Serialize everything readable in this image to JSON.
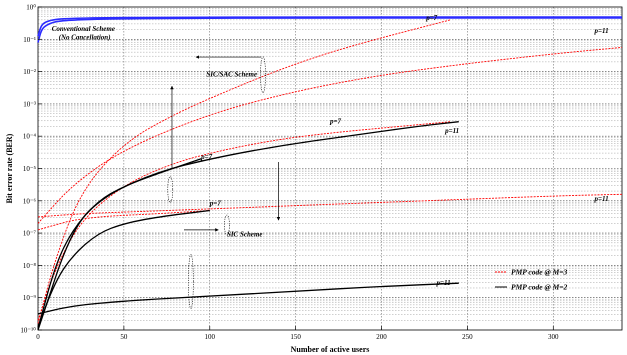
{
  "chart_data": {
    "type": "line",
    "xlabel": "Number of active users",
    "ylabel": "Bit error rate (BER)",
    "xlim": [
      0,
      340
    ],
    "ylim_exponent": [
      -10,
      0
    ],
    "y_scale": "log",
    "grid": true,
    "x_ticks": [
      "0",
      "50",
      "100",
      "150",
      "200",
      "250",
      "300"
    ],
    "x_tick_values": [
      0,
      50,
      100,
      150,
      200,
      250,
      300
    ],
    "y_ticks": [
      "10⁻¹⁰",
      "10⁻⁹",
      "10⁻⁸",
      "10⁻⁷",
      "10⁻⁶",
      "10⁻⁵",
      "10⁻⁴",
      "10⁻³",
      "10⁻²",
      "10⁻¹",
      "10⁰"
    ],
    "y_tick_exponents": [
      -10,
      -9,
      -8,
      -7,
      -6,
      -5,
      -4,
      -3,
      -2,
      -1,
      0
    ],
    "annotations": [
      {
        "text": "Conventional Scheme",
        "x": 8,
        "y": -0.75
      },
      {
        "text": "(No Cancellation)",
        "x": 12,
        "y": -1.0
      },
      {
        "text": "SIC/SAC Scheme",
        "x": 98,
        "y": -2.15
      },
      {
        "text": "SIC Scheme",
        "x": 110,
        "y": -7.1
      },
      {
        "text": "p=7",
        "x": 226,
        "y": -0.4
      },
      {
        "text": "p=11",
        "x": 324,
        "y": -0.8
      },
      {
        "text": "p=7",
        "x": 170,
        "y": -3.6
      },
      {
        "text": "p=11",
        "x": 237,
        "y": -3.9
      },
      {
        "text": "p=7",
        "x": 95,
        "y": -4.7
      },
      {
        "text": "p=11",
        "x": 324,
        "y": -6.0
      },
      {
        "text": "p=7",
        "x": 100,
        "y": -6.15
      },
      {
        "text": "p=11",
        "x": 232,
        "y": -8.6
      }
    ],
    "legend": {
      "position": "bottom-right",
      "entries": [
        {
          "label": "PMP code @ M=3",
          "color": "#ff0000"
        },
        {
          "label": "PMP code @ M=2",
          "color": "#000000"
        }
      ]
    },
    "series": [
      {
        "color": "#2b2bff",
        "x": [
          0,
          2,
          5,
          10,
          20,
          40,
          80,
          150,
          250,
          340
        ],
        "y": [
          -0.9,
          -0.55,
          -0.45,
          -0.38,
          -0.35,
          -0.33,
          -0.32,
          -0.31,
          -0.31,
          -0.31
        ]
      },
      {
        "color": "#2b2bff",
        "x": [
          0,
          2,
          5,
          10,
          20,
          40,
          80,
          150,
          250,
          340
        ],
        "y": [
          -1.1,
          -0.7,
          -0.55,
          -0.45,
          -0.4,
          -0.37,
          -0.35,
          -0.34,
          -0.34,
          -0.34
        ]
      },
      {
        "color": "#ff0000",
        "x": [
          0,
          10,
          25,
          50,
          80,
          110,
          140,
          170,
          200,
          240
        ],
        "y": [
          -9.8,
          -7.8,
          -5.7,
          -4.2,
          -3.3,
          -2.6,
          -1.95,
          -1.4,
          -0.95,
          -0.4
        ]
      },
      {
        "color": "#ff0000",
        "x": [
          0,
          20,
          50,
          100,
          150,
          200,
          250,
          300,
          340
        ],
        "y": [
          -6.7,
          -5.5,
          -4.4,
          -3.3,
          -2.6,
          -2.1,
          -1.75,
          -1.45,
          -1.25
        ]
      },
      {
        "color": "#ff0000",
        "x": [
          0,
          10,
          25,
          50,
          80,
          110,
          140,
          170,
          200,
          240
        ],
        "y": [
          -9.7,
          -8.1,
          -6.6,
          -5.5,
          -4.8,
          -4.4,
          -4.1,
          -3.9,
          -3.75,
          -3.55
        ]
      },
      {
        "color": "#ff0000",
        "x": [
          0,
          25,
          50,
          100,
          150,
          200,
          250,
          300,
          340
        ],
        "y": [
          -6.5,
          -6.4,
          -6.35,
          -6.25,
          -6.15,
          -6.05,
          -5.95,
          -5.85,
          -5.8
        ]
      },
      {
        "color": "#ff0000",
        "x": [
          0,
          10,
          20,
          35,
          50,
          70,
          100
        ],
        "y": [
          -6.9,
          -6.75,
          -6.6,
          -6.5,
          -6.45,
          -6.4,
          -6.3
        ]
      },
      {
        "color": "#000000",
        "x": [
          0,
          10,
          20,
          35,
          50,
          70,
          100
        ],
        "y": [
          -9.9,
          -8.5,
          -7.7,
          -7.0,
          -6.7,
          -6.5,
          -6.3
        ]
      },
      {
        "color": "#000000",
        "x": [
          0,
          10,
          20,
          35,
          50,
          70,
          95
        ],
        "y": [
          -9.95,
          -8.0,
          -6.9,
          -6.0,
          -5.55,
          -5.15,
          -4.7
        ]
      },
      {
        "color": "#000000",
        "x": [
          0,
          20,
          40,
          70,
          100,
          140,
          180,
          220,
          245
        ],
        "y": [
          -10.0,
          -6.8,
          -5.8,
          -5.1,
          -4.7,
          -4.3,
          -4.0,
          -3.7,
          -3.55
        ]
      },
      {
        "color": "#000000",
        "x": [
          0,
          20,
          50,
          100,
          150,
          200,
          245
        ],
        "y": [
          -9.5,
          -9.25,
          -9.1,
          -8.95,
          -8.8,
          -8.65,
          -8.55
        ]
      }
    ]
  }
}
